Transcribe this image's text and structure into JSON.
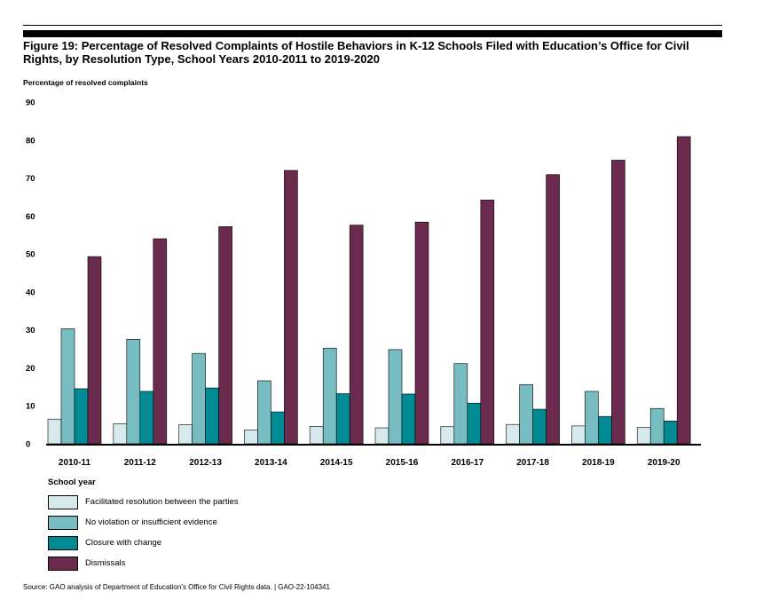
{
  "title": "Figure 19: Percentage of Resolved Complaints of Hostile Behaviors in K-12 Schools Filed with Education’s Office for Civil Rights, by Resolution Type, School Years 2010-2011 to 2019-2020",
  "source": "Source: GAO analysis of Department of Education’s Office for Civil Rights data.  |  GAO-22-104341",
  "colors": {
    "facilitated": "#d6e9ec",
    "no_violation": "#77bcc1",
    "closure": "#008a93",
    "dismissals": "#6b2b4e"
  },
  "chart_data": {
    "type": "bar",
    "title": "Figure 19: Percentage of Resolved Complaints of Hostile Behaviors in K-12 Schools Filed with Education’s Office for Civil Rights, by Resolution Type, School Years 2010-2011 to 2019-2020",
    "ylabel": "Percentage of resolved complaints",
    "xlabel": "School year",
    "ylim": [
      0,
      90
    ],
    "yticks": [
      0,
      10,
      20,
      30,
      40,
      50,
      60,
      70,
      80,
      90
    ],
    "grid": false,
    "legend_position": "bottom-left",
    "categories": [
      "2010-11",
      "2011-12",
      "2012-13",
      "2013-14",
      "2014-15",
      "2015-16",
      "2016-17",
      "2017-18",
      "2018-19",
      "2019-20"
    ],
    "series": [
      {
        "name": "Facilitated resolution between the parties",
        "key": "facilitated",
        "values": [
          6.5,
          5.3,
          5.0,
          3.6,
          4.6,
          4.2,
          4.5,
          5.1,
          4.7,
          4.3
        ]
      },
      {
        "name": "No violation or insufficient evidence",
        "key": "no_violation",
        "values": [
          30.3,
          27.5,
          23.8,
          16.6,
          25.2,
          24.8,
          21.1,
          15.6,
          13.8,
          9.3
        ]
      },
      {
        "name": "Closure with change",
        "key": "closure",
        "values": [
          14.5,
          13.8,
          14.7,
          8.4,
          13.2,
          13.1,
          10.7,
          9.1,
          7.2,
          6.0
        ]
      },
      {
        "name": "Dismissals",
        "key": "dismissals",
        "values": [
          49.3,
          54.0,
          57.2,
          72.0,
          57.6,
          58.4,
          64.2,
          70.9,
          74.7,
          80.9
        ]
      }
    ]
  }
}
